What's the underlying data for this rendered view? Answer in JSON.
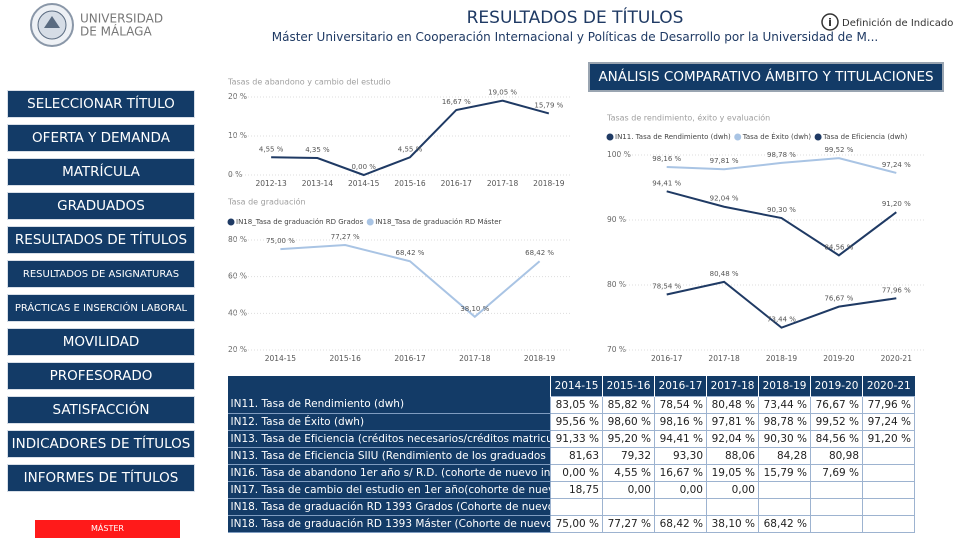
{
  "header": {
    "logo_line1": "UNIVERSIDAD",
    "logo_line2": "DE MÁLAGA",
    "title": "RESULTADOS DE TÍTULOS",
    "subtitle": "Máster Universitario en Cooperación Internacional y Políticas de Desarrollo por la Universidad de M...",
    "info_icon": "i",
    "info_link": "Definición de Indicadores"
  },
  "nav": [
    "SELECCIONAR TÍTULO",
    "OFERTA Y DEMANDA",
    "MATRÍCULA",
    "GRADUADOS",
    "RESULTADOS DE TÍTULOS",
    "RESULTADOS DE ASIGNATURAS",
    "PRÁCTICAS E INSERCIÓN LABORAL",
    "MOVILIDAD",
    "PROFESORADO",
    "SATISFACCIÓN",
    "INDICADORES DE TÍTULOS",
    "INFORMES DE TÍTULOS"
  ],
  "badge": "MÁSTER",
  "section_title": "ANÁLISIS COMPARATIVO ÁMBITO Y TITULACIONES",
  "chart_data": [
    {
      "type": "line",
      "title": "Tasas de abandono y cambio del estudio",
      "categories": [
        "2012-13",
        "2013-14",
        "2014-15",
        "2015-16",
        "2016-17",
        "2017-18",
        "2018-19"
      ],
      "values": [
        4.55,
        4.35,
        0.0,
        4.55,
        16.67,
        19.05,
        15.79
      ],
      "value_labels": [
        "4,55 %",
        "4,35 %",
        "0,00 %",
        "4,55 %",
        "16,67 %",
        "19,05 %",
        "15,79 %"
      ],
      "color": "#1f3a64",
      "ylim": [
        0,
        20
      ],
      "yticks": [
        {
          "value": 0,
          "label": "0 %"
        },
        {
          "value": 10,
          "label": "10 %"
        },
        {
          "value": 20,
          "label": "20 %"
        }
      ],
      "grid": true
    },
    {
      "type": "line",
      "title": "Tasa de graduación",
      "categories": [
        "2014-15",
        "2015-16",
        "2016-17",
        "2017-18",
        "2018-19"
      ],
      "series": [
        {
          "name": "IN18_Tasa de graduación RD Grados",
          "color": "#1f3a64",
          "values": [
            null,
            null,
            null,
            null,
            null
          ]
        },
        {
          "name": "IN18_Tasa de graduación RD Máster",
          "color": "#a9c4e4",
          "values": [
            75.0,
            77.27,
            68.42,
            38.1,
            68.42
          ],
          "value_labels": [
            "75,00 %",
            "77,27 %",
            "68,42 %",
            "38,10 %",
            "68,42 %"
          ]
        }
      ],
      "ylim": [
        20,
        80
      ],
      "yticks": [
        {
          "value": 20,
          "label": "20 %"
        },
        {
          "value": 40,
          "label": "40 %"
        },
        {
          "value": 60,
          "label": "60 %"
        },
        {
          "value": 80,
          "label": "80 %"
        }
      ],
      "grid": true
    },
    {
      "type": "line",
      "title": "Tasas de rendimiento, éxito y evaluación",
      "categories": [
        "2016-17",
        "2017-18",
        "2018-19",
        "2019-20",
        "2020-21"
      ],
      "series": [
        {
          "name": "IN11. Tasa de Rendimiento (dwh)",
          "color": "#1f3a64",
          "values": [
            78.54,
            80.48,
            73.44,
            76.67,
            77.96
          ],
          "value_labels": [
            "78,54 %",
            "80,48 %",
            "73,44 %",
            "76,67 %",
            "77,96 %"
          ]
        },
        {
          "name": "Tasa de Éxito (dwh)",
          "color": "#a9c4e4",
          "values": [
            98.16,
            97.81,
            98.78,
            99.52,
            97.24
          ],
          "value_labels": [
            "98,16 %",
            "97,81 %",
            "98,78 %",
            "99,52 %",
            "97,24 %"
          ]
        },
        {
          "name": "Tasa de Eficiencia (dwh)",
          "color": "#1f3a64",
          "values": [
            94.41,
            92.04,
            90.3,
            84.56,
            91.2
          ],
          "value_labels": [
            "94,41 %",
            "92,04 %",
            "90,30 %",
            "84,56 %",
            "91,20 %"
          ]
        }
      ],
      "ylim": [
        70,
        100
      ],
      "yticks": [
        {
          "value": 70,
          "label": "70 %"
        },
        {
          "value": 80,
          "label": "80 %"
        },
        {
          "value": 90,
          "label": "90 %"
        },
        {
          "value": 100,
          "label": "100 %"
        }
      ],
      "grid": true
    }
  ],
  "table": {
    "columns": [
      "2014-15",
      "2015-16",
      "2016-17",
      "2017-18",
      "2018-19",
      "2019-20",
      "2020-21"
    ],
    "rows": [
      {
        "label": "IN11. Tasa de Rendimiento (dwh)",
        "cells": [
          "83,05 %",
          "85,82 %",
          "78,54 %",
          "80,48 %",
          "73,44 %",
          "76,67 %",
          "77,96 %"
        ]
      },
      {
        "label": "IN12. Tasa de Éxito (dwh)",
        "cells": [
          "95,56 %",
          "98,60 %",
          "98,16 %",
          "97,81 %",
          "98,78 %",
          "99,52 %",
          "97,24 %"
        ]
      },
      {
        "label": "IN13. Tasa de Eficiencia  (créditos necesarios/créditos matricula...",
        "cells": [
          "91,33 %",
          "95,20 %",
          "94,41 %",
          "92,04 %",
          "90,30 %",
          "84,56 %",
          "91,20 %"
        ]
      },
      {
        "label": "IN13. Tasa de Eficiencia SIIU (Rendimiento de los graduados )",
        "cells": [
          "81,63",
          "79,32",
          "93,30",
          "88,06",
          "84,28",
          "80,98",
          null
        ]
      },
      {
        "label": "IN16. Tasa de abandono 1er año s/ R.D. (cohorte de nuevo ingr...",
        "cells": [
          "0,00 %",
          "4,55 %",
          "16,67 %",
          "19,05 %",
          "15,79 %",
          "7,69 %",
          null
        ]
      },
      {
        "label": "IN17. Tasa de cambio del estudio en 1er año(cohorte de nuevo...",
        "cells": [
          "18,75",
          "0,00",
          "0,00",
          "0,00",
          null,
          null,
          null
        ]
      },
      {
        "label": "IN18. Tasa de graduación RD 1393 Grados (Cohorte de nuevo i...",
        "cells": [
          null,
          null,
          null,
          null,
          null,
          null,
          null
        ]
      },
      {
        "label": "IN18. Tasa de graduación RD 1393 Máster (Cohorte de nuevo i...",
        "cells": [
          "75,00 %",
          "77,27 %",
          "68,42 %",
          "38,10 %",
          "68,42 %",
          null,
          null
        ]
      }
    ]
  }
}
